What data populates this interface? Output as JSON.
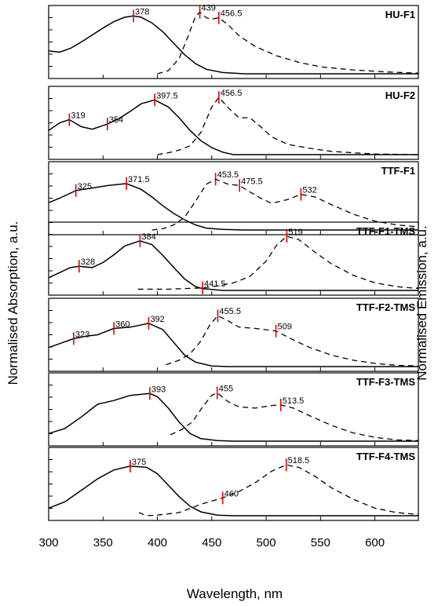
{
  "chart_data": {
    "type": "line",
    "xlabel": "Wavelength, nm",
    "ylabel_left": "Normalised Absorption, a.u.",
    "ylabel_right": "Normalised Emission, a.u.",
    "xlim": [
      300,
      640
    ],
    "xticks": [
      300,
      350,
      400,
      450,
      500,
      550,
      600
    ],
    "ylim": [
      0,
      1
    ],
    "grid": false,
    "series_styles": {
      "absorption": "solid",
      "emission": "dashed"
    },
    "marker_color": "#e00000",
    "panels": [
      {
        "name": "HU-F1",
        "absorption": {
          "x": [
            300,
            310,
            320,
            330,
            340,
            350,
            360,
            370,
            378,
            385,
            395,
            405,
            415,
            425,
            435,
            445,
            460,
            480,
            500,
            640
          ],
          "y": [
            0.36,
            0.34,
            0.4,
            0.5,
            0.61,
            0.72,
            0.82,
            0.89,
            0.91,
            0.89,
            0.8,
            0.66,
            0.48,
            0.3,
            0.16,
            0.07,
            0.02,
            0.0,
            0.0,
            0.0
          ]
        },
        "emission": {
          "x": [
            400,
            410,
            420,
            428,
            435,
            439,
            445,
            450,
            456.5,
            465,
            475,
            490,
            510,
            530,
            550,
            580,
            610,
            640
          ],
          "y": [
            0.0,
            0.05,
            0.24,
            0.58,
            0.9,
            0.97,
            0.88,
            0.86,
            0.88,
            0.77,
            0.6,
            0.43,
            0.28,
            0.18,
            0.11,
            0.06,
            0.03,
            0.01
          ]
        },
        "peaks": [
          {
            "x": 378,
            "y": 0.91,
            "label": "378"
          },
          {
            "x": 439,
            "y": 0.97,
            "label": "439"
          },
          {
            "x": 456.5,
            "y": 0.88,
            "label": "456.5"
          }
        ]
      },
      {
        "name": "HU-F2",
        "absorption": {
          "x": [
            300,
            310,
            319,
            330,
            340,
            354,
            365,
            375,
            385,
            397.5,
            410,
            420,
            430,
            440,
            450,
            460,
            470,
            640
          ],
          "y": [
            0.38,
            0.5,
            0.55,
            0.44,
            0.4,
            0.48,
            0.57,
            0.68,
            0.8,
            0.86,
            0.75,
            0.58,
            0.38,
            0.22,
            0.11,
            0.04,
            0.0,
            0.0
          ]
        },
        "emission": {
          "x": [
            400,
            410,
            420,
            430,
            440,
            450,
            456.5,
            465,
            475,
            485,
            495,
            505,
            520,
            540,
            560,
            580,
            600,
            640
          ],
          "y": [
            0.0,
            0.03,
            0.07,
            0.14,
            0.35,
            0.75,
            0.9,
            0.74,
            0.58,
            0.58,
            0.44,
            0.28,
            0.16,
            0.1,
            0.05,
            0.03,
            0.01,
            0.0
          ]
        },
        "peaks": [
          {
            "x": 319,
            "y": 0.55,
            "label": "319"
          },
          {
            "x": 354,
            "y": 0.48,
            "label": "354"
          },
          {
            "x": 397.5,
            "y": 0.86,
            "label": "397.5"
          },
          {
            "x": 456.5,
            "y": 0.9,
            "label": "456.5"
          }
        ]
      },
      {
        "name": "TTF-F1",
        "absorption": {
          "x": [
            300,
            310,
            325,
            340,
            355,
            371.5,
            385,
            395,
            405,
            415,
            425,
            435,
            445,
            460,
            480,
            640
          ],
          "y": [
            0.43,
            0.5,
            0.62,
            0.66,
            0.7,
            0.73,
            0.64,
            0.52,
            0.38,
            0.26,
            0.16,
            0.08,
            0.03,
            0.01,
            0.0,
            0.0
          ]
        },
        "emission": {
          "x": [
            395,
            405,
            415,
            425,
            435,
            445,
            453.5,
            465,
            475.5,
            485,
            495,
            505,
            520,
            532,
            545,
            560,
            580,
            600,
            620,
            640
          ],
          "y": [
            0.0,
            0.02,
            0.08,
            0.2,
            0.45,
            0.72,
            0.8,
            0.72,
            0.7,
            0.6,
            0.5,
            0.42,
            0.48,
            0.56,
            0.52,
            0.4,
            0.25,
            0.14,
            0.08,
            0.05
          ]
        },
        "peaks": [
          {
            "x": 325,
            "y": 0.62,
            "label": "325"
          },
          {
            "x": 371.5,
            "y": 0.73,
            "label": "371.5"
          },
          {
            "x": 453.5,
            "y": 0.8,
            "label": "453.5"
          },
          {
            "x": 475.5,
            "y": 0.7,
            "label": "475.5"
          },
          {
            "x": 532,
            "y": 0.56,
            "label": "532"
          }
        ]
      },
      {
        "name": "TTF-F1-TMS",
        "absorption": {
          "x": [
            300,
            310,
            320,
            328,
            340,
            350,
            360,
            370,
            384,
            395,
            405,
            415,
            425,
            435,
            441.5,
            460,
            480,
            640
          ],
          "y": [
            0.2,
            0.28,
            0.36,
            0.38,
            0.36,
            0.44,
            0.56,
            0.7,
            0.78,
            0.72,
            0.55,
            0.36,
            0.18,
            0.06,
            0.03,
            0.0,
            0.0,
            0.0
          ]
        },
        "emission": {
          "x": [
            382,
            395,
            410,
            425,
            441.5,
            455,
            470,
            485,
            500,
            510,
            519,
            530,
            545,
            560,
            580,
            600,
            620,
            640
          ],
          "y": [
            0.02,
            0.02,
            0.02,
            0.03,
            0.04,
            0.07,
            0.12,
            0.22,
            0.46,
            0.72,
            0.85,
            0.8,
            0.6,
            0.42,
            0.24,
            0.12,
            0.06,
            0.03
          ]
        },
        "peaks": [
          {
            "x": 328,
            "y": 0.38,
            "label": "328"
          },
          {
            "x": 384,
            "y": 0.78,
            "label": "384"
          },
          {
            "x": 441.5,
            "y": 0.04,
            "label": "441.5"
          },
          {
            "x": 519,
            "y": 0.85,
            "label": "519"
          }
        ]
      },
      {
        "name": "TTF-F2-TMS",
        "absorption": {
          "x": [
            300,
            310,
            323,
            335,
            345,
            360,
            375,
            392,
            405,
            415,
            425,
            435,
            450,
            465,
            640
          ],
          "y": [
            0.3,
            0.36,
            0.44,
            0.48,
            0.5,
            0.6,
            0.62,
            0.68,
            0.58,
            0.38,
            0.18,
            0.07,
            0.01,
            0.0,
            0.0
          ]
        },
        "emission": {
          "x": [
            408,
            420,
            430,
            440,
            448,
            455.5,
            465,
            475,
            490,
            509,
            525,
            540,
            560,
            580,
            600,
            620,
            640
          ],
          "y": [
            0.03,
            0.1,
            0.2,
            0.4,
            0.65,
            0.8,
            0.72,
            0.62,
            0.6,
            0.56,
            0.42,
            0.3,
            0.18,
            0.1,
            0.05,
            0.02,
            0.01
          ]
        },
        "peaks": [
          {
            "x": 323,
            "y": 0.44,
            "label": "323"
          },
          {
            "x": 360,
            "y": 0.6,
            "label": "360"
          },
          {
            "x": 392,
            "y": 0.68,
            "label": "392"
          },
          {
            "x": 455.5,
            "y": 0.8,
            "label": "455.5"
          },
          {
            "x": 509,
            "y": 0.56,
            "label": "509"
          }
        ]
      },
      {
        "name": "TTF-F3-TMS",
        "absorption": {
          "x": [
            300,
            315,
            330,
            345,
            360,
            375,
            393,
            400,
            410,
            420,
            430,
            440,
            455,
            470,
            640
          ],
          "y": [
            0.12,
            0.2,
            0.38,
            0.58,
            0.64,
            0.72,
            0.75,
            0.7,
            0.52,
            0.3,
            0.12,
            0.04,
            0.01,
            0.0,
            0.0
          ]
        },
        "emission": {
          "x": [
            412,
            422,
            432,
            442,
            450,
            455,
            465,
            475,
            490,
            505,
            513.5,
            525,
            540,
            560,
            580,
            600,
            620,
            640
          ],
          "y": [
            0.1,
            0.18,
            0.3,
            0.55,
            0.72,
            0.76,
            0.62,
            0.54,
            0.52,
            0.56,
            0.57,
            0.52,
            0.4,
            0.25,
            0.13,
            0.06,
            0.02,
            0.01
          ]
        },
        "peaks": [
          {
            "x": 393,
            "y": 0.75,
            "label": "393"
          },
          {
            "x": 455,
            "y": 0.76,
            "label": "455"
          },
          {
            "x": 513.5,
            "y": 0.57,
            "label": "513.5"
          }
        ]
      },
      {
        "name": "TTF-F4-TMS",
        "absorption": {
          "x": [
            300,
            315,
            330,
            345,
            360,
            375,
            390,
            400,
            410,
            420,
            430,
            440,
            455,
            470,
            640
          ],
          "y": [
            0.12,
            0.22,
            0.4,
            0.58,
            0.72,
            0.78,
            0.76,
            0.66,
            0.48,
            0.3,
            0.15,
            0.06,
            0.01,
            0.0,
            0.0
          ]
        },
        "emission": {
          "x": [
            383,
            390,
            400,
            420,
            440,
            460,
            475,
            490,
            505,
            518.5,
            530,
            545,
            560,
            580,
            600,
            620,
            640
          ],
          "y": [
            0.05,
            0.0,
            0.01,
            0.05,
            0.18,
            0.28,
            0.38,
            0.52,
            0.7,
            0.8,
            0.76,
            0.62,
            0.44,
            0.26,
            0.12,
            0.05,
            0.02
          ]
        },
        "peaks": [
          {
            "x": 375,
            "y": 0.78,
            "label": "375"
          },
          {
            "x": 460,
            "y": 0.28,
            "label": "460"
          },
          {
            "x": 518.5,
            "y": 0.8,
            "label": "518.5"
          }
        ]
      }
    ]
  }
}
